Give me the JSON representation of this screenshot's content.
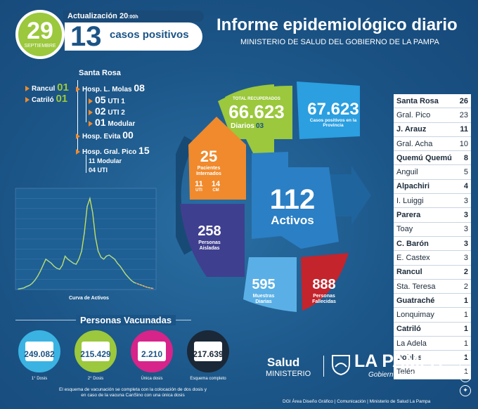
{
  "header": {
    "day": "29",
    "month": "SEPTIEMBRE",
    "update_label": "Actualización 20",
    "update_suffix": ":00h",
    "positive_count": "13",
    "positive_label": "casos positivos",
    "title": "Informe epidemiológico diario",
    "subtitle": "MINISTERIO DE SALUD DEL GOBIERNO DE LA PAMPA"
  },
  "hospitals": {
    "santa_rosa": "Santa Rosa",
    "rancul_label": "Rancul",
    "rancul_value": "01",
    "catrilo_label": "Catriló",
    "catrilo_value": "01",
    "molas_label": "Hosp. L. Molas",
    "molas_value": "08",
    "molas_uti1_value": "05",
    "molas_uti1_label": "UTI 1",
    "molas_uti2_value": "02",
    "molas_uti2_label": "UTI 2",
    "molas_modular_value": "01",
    "molas_modular_label": "Modular",
    "evita_label": "Hosp. Evita",
    "evita_value": "00",
    "pico_label": "Hosp. Gral. Pico",
    "pico_value": "15",
    "pico_modular": "11 Modular",
    "pico_uti": "04 UTI"
  },
  "chart_data": {
    "type": "line",
    "title": "",
    "caption": "Curva de Activos",
    "xlabel": "",
    "ylabel": "",
    "ylim": [
      0,
      1000
    ],
    "series": [
      {
        "values": [
          5,
          10,
          15,
          30,
          40,
          60,
          90,
          130,
          180,
          240,
          300,
          280,
          260,
          230,
          210,
          200,
          240,
          330,
          300,
          280,
          260,
          250,
          300,
          380,
          560,
          820,
          900,
          760,
          520,
          380,
          320,
          300,
          330,
          340,
          320,
          300,
          260,
          230,
          190,
          150,
          120,
          90,
          70,
          60,
          50,
          40,
          30,
          20,
          15,
          10
        ]
      }
    ]
  },
  "wheel": {
    "recuperados_label": "TOTAL RECUPERADOS",
    "recuperados_value": "66.623",
    "recuperados_diarios_label": "Diarios",
    "recuperados_diarios_value": "03",
    "positivos_value": "67.623",
    "positivos_label": "Casos positivos en la Provincia",
    "internados_value": "25",
    "internados_label": "Pacientes Internados",
    "uti_value": "11",
    "uti_label": "UTI",
    "cm_value": "14",
    "cm_label": "CM",
    "activos_value": "112",
    "activos_label": "Activos",
    "aisladas_value": "258",
    "aisladas_label": "Personas Aisladas",
    "muestras_value": "595",
    "muestras_label": "Muestras Diarias",
    "fallecidas_value": "888",
    "fallecidas_label": "Personas Fallecidas"
  },
  "localities": [
    {
      "name": "Santa Rosa",
      "value": "26",
      "bold": true
    },
    {
      "name": "Gral. Pico",
      "value": "23",
      "bold": false
    },
    {
      "name": "J. Arauz",
      "value": "11",
      "bold": true
    },
    {
      "name": "Gral. Acha",
      "value": "10",
      "bold": false
    },
    {
      "name": "Quemú Quemú",
      "value": "8",
      "bold": true
    },
    {
      "name": "Anguil",
      "value": "5",
      "bold": false
    },
    {
      "name": "Alpachiri",
      "value": "4",
      "bold": true
    },
    {
      "name": "I. Luiggi",
      "value": "3",
      "bold": false
    },
    {
      "name": "Parera",
      "value": "3",
      "bold": true
    },
    {
      "name": "Toay",
      "value": "3",
      "bold": false
    },
    {
      "name": "C. Barón",
      "value": "3",
      "bold": true
    },
    {
      "name": "E. Castex",
      "value": "3",
      "bold": false
    },
    {
      "name": "Rancul",
      "value": "2",
      "bold": true
    },
    {
      "name": "Sta. Teresa",
      "value": "2",
      "bold": false
    },
    {
      "name": "Guatraché",
      "value": "1",
      "bold": true
    },
    {
      "name": "Lonquimay",
      "value": "1",
      "bold": false
    },
    {
      "name": "Catriló",
      "value": "1",
      "bold": true
    },
    {
      "name": "La Adela",
      "value": "1",
      "bold": false
    },
    {
      "name": "Doblas",
      "value": "1",
      "bold": true
    },
    {
      "name": "Telén",
      "value": "1",
      "bold": false
    }
  ],
  "vaccination": {
    "title": "Personas Vacunadas",
    "doses": [
      {
        "value": "249.082",
        "label": "1° Dosis",
        "color": "#3ab3e2"
      },
      {
        "value": "215.429",
        "label": "2° Dosis",
        "color": "#9bc83c"
      },
      {
        "value": "2.210",
        "label": "Única dosis",
        "color": "#d6248a"
      },
      {
        "value": "217.639",
        "label": "Esquema completo",
        "color": "#1a2838"
      }
    ],
    "note": "El esquema de vacunación se completa con la colocación de dos dosis y en caso de la vacuna CanSino con una única dosis"
  },
  "footer": {
    "salud": "Salud",
    "ministerio": "MINISTERIO",
    "la_pampa": "LA PAMPA",
    "gobierno": "Gobierno en Acción",
    "credits": "DGI Área Diseño Gráfico  |  Comunicación  |  Ministerio de Salud La Pampa"
  },
  "colors": {
    "green": "#9bc83c",
    "blue": "#2b9fe0",
    "orange": "#f08a2c",
    "purple": "#3f3f8f",
    "red": "#c4242c",
    "navy": "#1b5486"
  }
}
